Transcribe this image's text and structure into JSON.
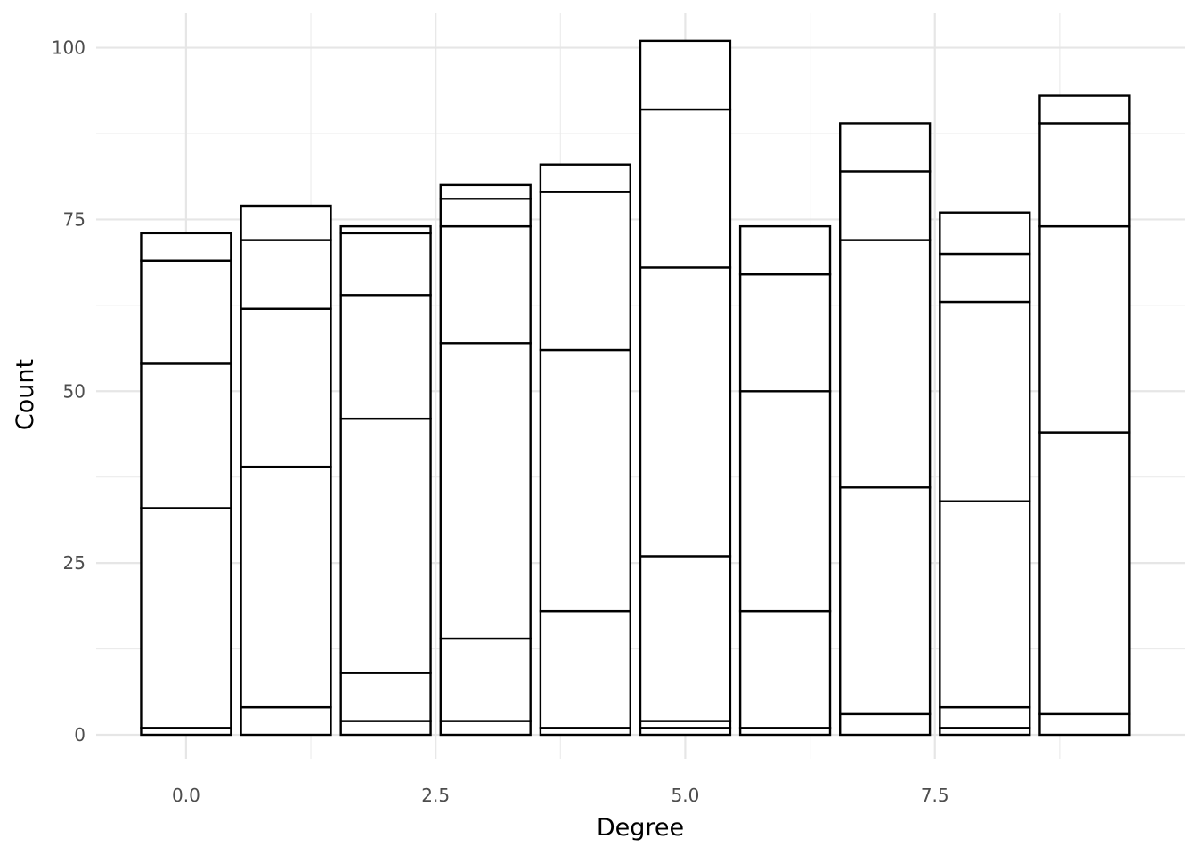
{
  "chart_data": {
    "type": "bar",
    "stacked": true,
    "title": "",
    "xlabel": "Degree",
    "ylabel": "Count",
    "xlim": [
      -0.9,
      10.0
    ],
    "ylim": [
      -3.5,
      105
    ],
    "x_ticks": [
      0.0,
      2.5,
      5.0,
      7.5
    ],
    "x_tick_labels": [
      "0.0",
      "2.5",
      "5.0",
      "7.5"
    ],
    "y_ticks": [
      0,
      25,
      50,
      75,
      100
    ],
    "y_tick_labels": [
      "0",
      "25",
      "50",
      "75",
      "100"
    ],
    "bar_width": 0.9,
    "grid": true,
    "fill_color": "#ffffff",
    "edge_color": "#000000",
    "bars": [
      {
        "x": 0,
        "segments": [
          1,
          32,
          21,
          15,
          4
        ]
      },
      {
        "x": 1,
        "segments": [
          4,
          35,
          23,
          10,
          5
        ]
      },
      {
        "x": 2,
        "segments": [
          2,
          7,
          37,
          18,
          9,
          1
        ]
      },
      {
        "x": 3,
        "segments": [
          2,
          12,
          43,
          17,
          4,
          2
        ]
      },
      {
        "x": 4,
        "segments": [
          1,
          17,
          38,
          23,
          4
        ]
      },
      {
        "x": 5,
        "segments": [
          1,
          1,
          24,
          42,
          23,
          10
        ]
      },
      {
        "x": 6,
        "segments": [
          1,
          17,
          32,
          17,
          7
        ]
      },
      {
        "x": 7,
        "segments": [
          3,
          33,
          36,
          10,
          7
        ]
      },
      {
        "x": 8,
        "segments": [
          1,
          3,
          30,
          29,
          7,
          6
        ]
      },
      {
        "x": 9,
        "segments": [
          3,
          41,
          30,
          15,
          4
        ]
      }
    ]
  }
}
